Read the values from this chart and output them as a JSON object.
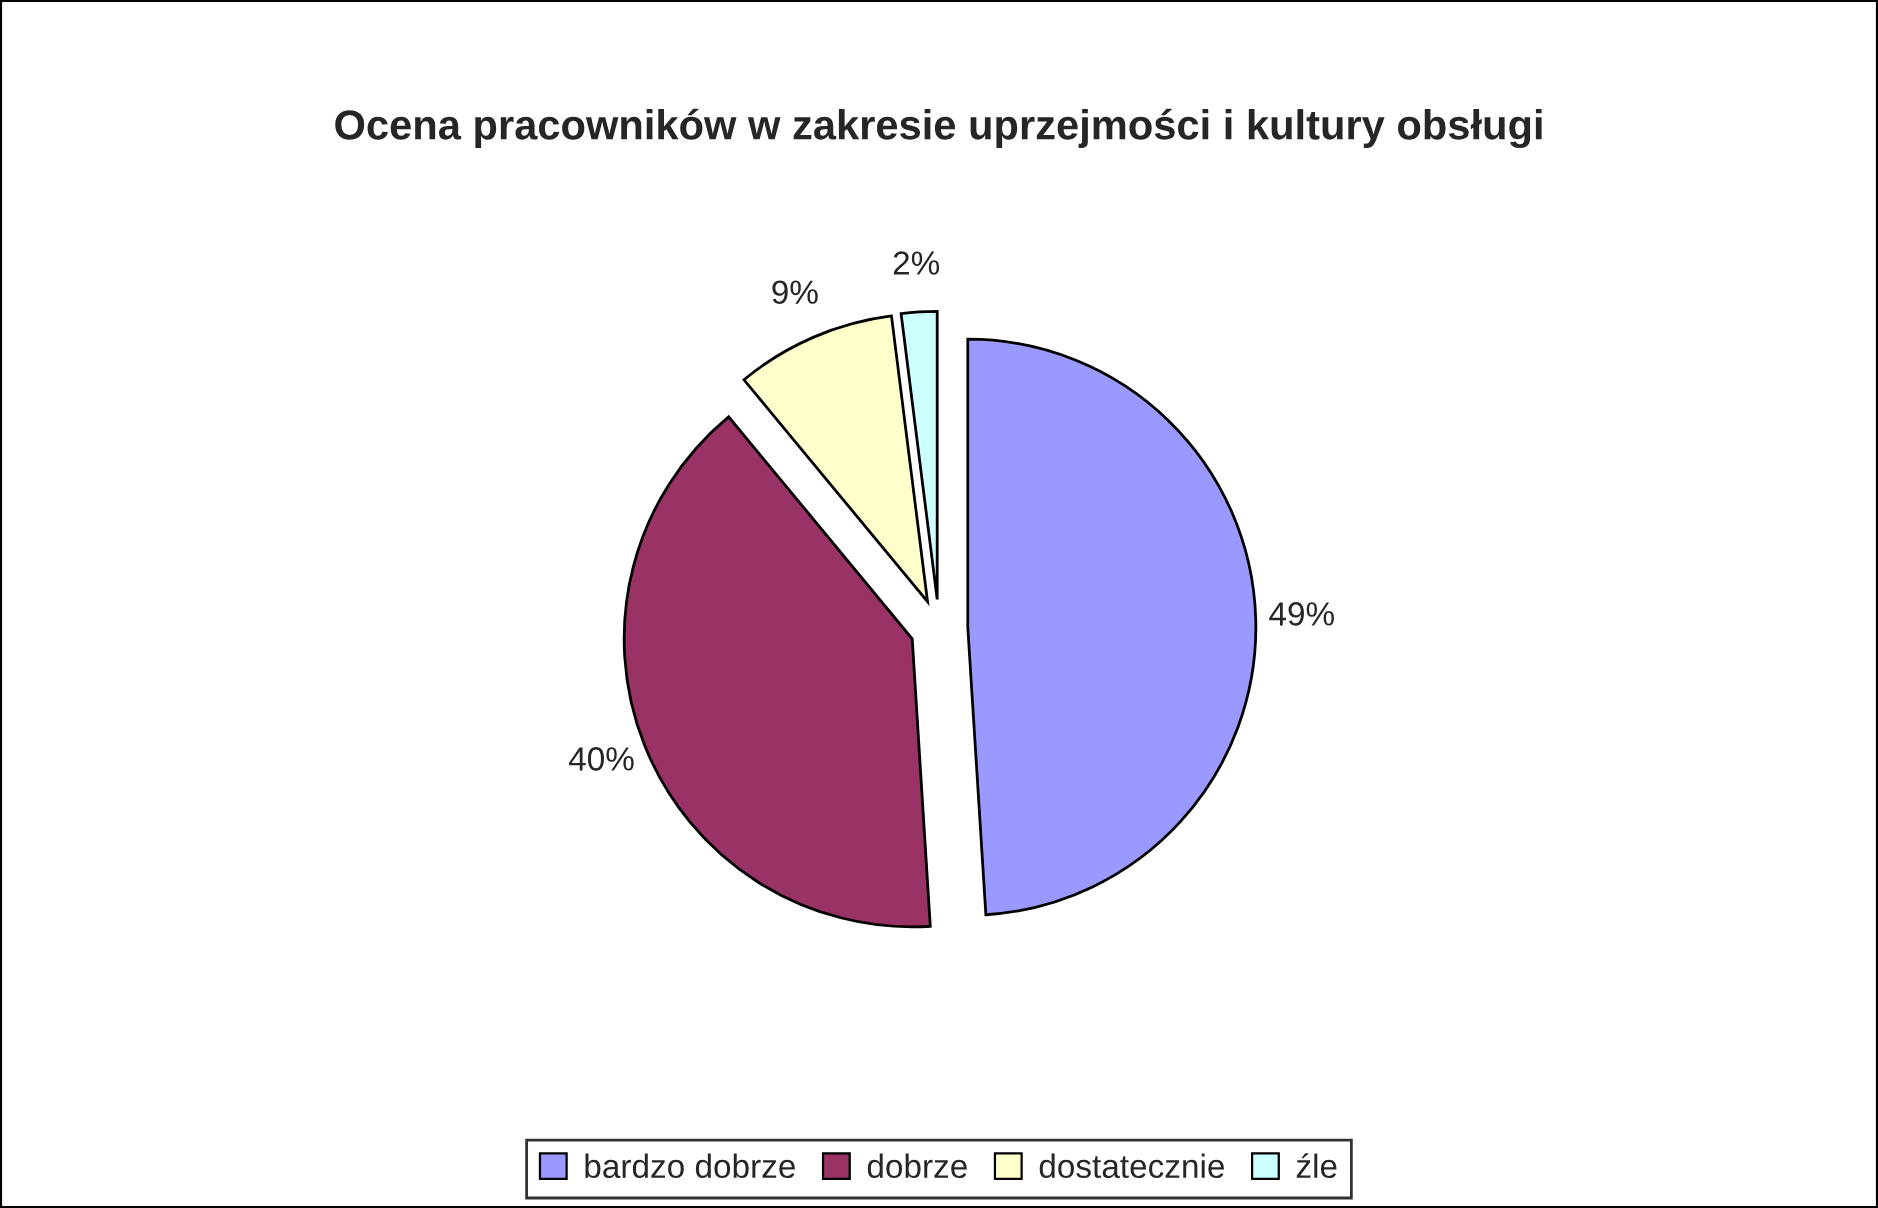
{
  "chart_data": {
    "type": "pie",
    "title": "Ocena pracowników w zakresie uprzejmości i kultury obsługi",
    "categories": [
      "bardzo dobrze",
      "dobrze",
      "dostatecznie",
      "źle"
    ],
    "values": [
      49,
      40,
      9,
      2
    ],
    "value_labels": [
      "49%",
      "40%",
      "9%",
      "2%"
    ],
    "colors": [
      "#9999ff",
      "#993366",
      "#ffffcc",
      "#ccffff"
    ],
    "legend": "bottom"
  }
}
